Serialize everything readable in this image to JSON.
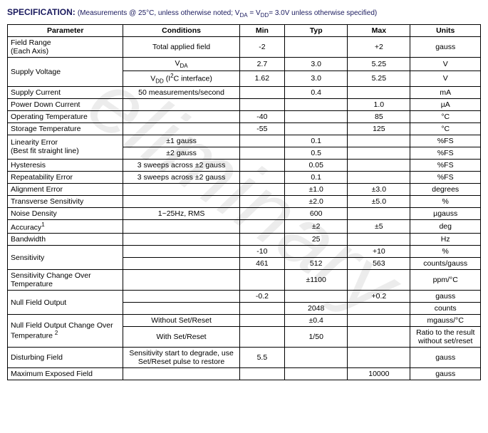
{
  "header": {
    "title": "SPECIFICATION:",
    "subtitle_prefix": " (Measurements @ 25°C, unless otherwise noted; V",
    "subtitle_sub1": "DA",
    "subtitle_mid": " = V",
    "subtitle_sub2": "DD",
    "subtitle_suffix": "= 3.0V unless otherwise specified)"
  },
  "watermark": "eliminary",
  "columns": {
    "parameter": "Parameter",
    "conditions": "Conditions",
    "min": "Min",
    "typ": "Typ",
    "max": "Max",
    "units": "Units"
  },
  "rows": [
    {
      "param": "Field Range\n(Each Axis)",
      "cond": "Total applied field",
      "min": "-2",
      "typ": "",
      "max": "+2",
      "units": "gauss"
    },
    {
      "param": "Supply Voltage",
      "cond_html": "V<sub>DA</sub>",
      "min": "2.7",
      "typ": "3.0",
      "max": "5.25",
      "units": "V",
      "rowspan": 2
    },
    {
      "param": "",
      "cond_html": "V<sub>DD</sub> (I<sup>2</sup>C interface)",
      "min": "1.62",
      "typ": "3.0",
      "max": "5.25",
      "units": "V",
      "continuation": true
    },
    {
      "param": "Supply Current",
      "cond": "50 measurements/second",
      "min": "",
      "typ": "0.4",
      "max": "",
      "units": "mA"
    },
    {
      "param": "Power Down Current",
      "cond": "",
      "min": "",
      "typ": "",
      "max": "1.0",
      "units": "µA"
    },
    {
      "param": "Operating Temperature",
      "cond": "",
      "min": "-40",
      "typ": "",
      "max": "85",
      "units": "°C"
    },
    {
      "param": "Storage Temperature",
      "cond": "",
      "min": "-55",
      "typ": "",
      "max": "125",
      "units": "°C"
    },
    {
      "param": "Linearity Error\n(Best fit straight line)",
      "cond": "±1 gauss",
      "min": "",
      "typ": "0.1",
      "max": "",
      "units": "%FS",
      "rowspan": 2
    },
    {
      "param": "",
      "cond": "±2 gauss",
      "min": "",
      "typ": "0.5",
      "max": "",
      "units": "%FS",
      "continuation": true
    },
    {
      "param": "Hysteresis",
      "cond": "3 sweeps across ±2 gauss",
      "min": "",
      "typ": "0.05",
      "max": "",
      "units": "%FS"
    },
    {
      "param": "Repeatability Error",
      "cond": "3 sweeps across ±2 gauss",
      "min": "",
      "typ": "0.1",
      "max": "",
      "units": "%FS"
    },
    {
      "param": "Alignment Error",
      "cond": "",
      "min": "",
      "typ": "±1.0",
      "max": "±3.0",
      "units": "degrees"
    },
    {
      "param": "Transverse Sensitivity",
      "cond": "",
      "min": "",
      "typ": "±2.0",
      "max": "±5.0",
      "units": "%"
    },
    {
      "param": "Noise Density",
      "cond": "1~25Hz, RMS",
      "min": "",
      "typ": "600",
      "max": "",
      "units": "µgauss"
    },
    {
      "param_html": "Accuracy<sup>1</sup>",
      "cond": "",
      "min": "",
      "typ": "±2",
      "max": "±5",
      "units": "deg"
    },
    {
      "param": "Bandwidth",
      "cond": "",
      "min": "",
      "typ": "25",
      "max": "",
      "units": "Hz"
    },
    {
      "param": "Sensitivity",
      "cond": "",
      "min": "-10",
      "typ": "",
      "max": "+10",
      "units": "%",
      "rowspan": 2
    },
    {
      "param": "",
      "cond": "",
      "min": "461",
      "typ": "512",
      "max": "563",
      "units": "counts/gauss",
      "continuation": true
    },
    {
      "param": "Sensitivity Change Over Temperature",
      "cond": "",
      "min": "",
      "typ": "±1100",
      "max": "",
      "units": "ppm/°C"
    },
    {
      "param": "Null Field Output",
      "cond": "",
      "min": "-0.2",
      "typ": "",
      "max": "+0.2",
      "units": "gauss",
      "rowspan": 2
    },
    {
      "param": "",
      "cond": "",
      "min": "",
      "typ": "2048",
      "max": "",
      "units": "counts",
      "continuation": true
    },
    {
      "param_html": "Null Field Output Change Over Temperature <sup>2</sup>",
      "cond": "Without Set/Reset",
      "min": "",
      "typ": "±0.4",
      "max": "",
      "units": "mgauss/°C",
      "rowspan": 2
    },
    {
      "param": "",
      "cond": "With Set/Reset",
      "min": "",
      "typ": "1/50",
      "max": "",
      "units": "Ratio to the result without set/reset",
      "continuation": true
    },
    {
      "param": "Disturbing Field",
      "cond": "Sensitivity start to degrade, use Set/Reset pulse to restore",
      "min": "5.5",
      "typ": "",
      "max": "",
      "units": "gauss"
    },
    {
      "param": "Maximum Exposed Field",
      "cond": "",
      "min": "",
      "typ": "",
      "max": "10000",
      "units": "gauss"
    }
  ]
}
